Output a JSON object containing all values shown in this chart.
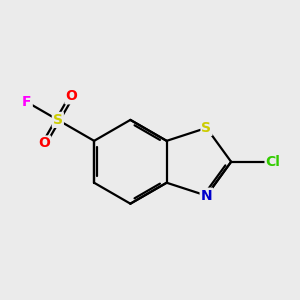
{
  "bg_color": "#ebebeb",
  "bond_color": "#000000",
  "bond_width": 1.6,
  "atom_colors": {
    "S_sulfonyl": "#cccc00",
    "S_thiazole": "#cccc00",
    "N": "#0000cc",
    "O": "#ff0000",
    "F": "#ff00ff",
    "Cl": "#33cc00"
  },
  "font_size": 10,
  "figsize": [
    3.0,
    3.0
  ],
  "dpi": 100,
  "bl": 0.9
}
